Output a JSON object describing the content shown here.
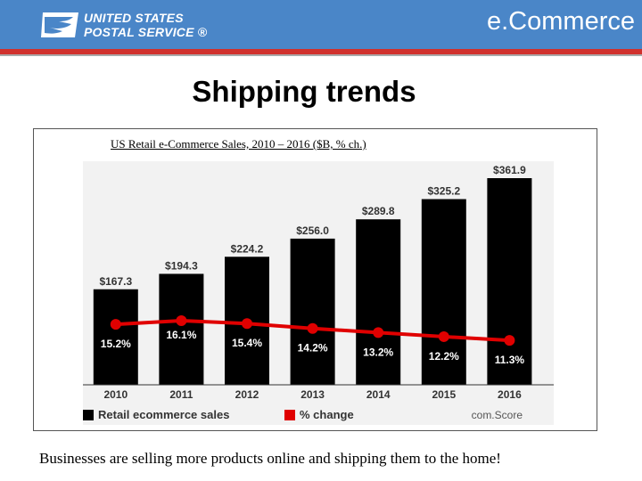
{
  "header": {
    "logo_line1": "UNITED STATES",
    "logo_line2": "POSTAL SERVICE ®",
    "section": "e.Commerce"
  },
  "slide": {
    "title": "Shipping trends",
    "caption": "Businesses are selling more products online and shipping them to the home!"
  },
  "colors": {
    "header_blue": "#4a86c8",
    "stripe_red": "#d0312d",
    "bar": "#000000",
    "line": "#e00000"
  },
  "chart_data": {
    "type": "bar",
    "title": "US Retail e-Commerce Sales, 2010 – 2016 ($B, % ch.)",
    "categories": [
      "2010",
      "2011",
      "2012",
      "2013",
      "2014",
      "2015",
      "2016"
    ],
    "series": [
      {
        "name": "Retail ecommerce sales",
        "type": "bar",
        "values": [
          167.3,
          194.3,
          224.2,
          256.0,
          289.8,
          325.2,
          361.9
        ],
        "labels": [
          "$167.3",
          "$194.3",
          "$224.2",
          "$256.0",
          "$289.8",
          "$325.2",
          "$361.9"
        ]
      },
      {
        "name": "% change",
        "type": "line",
        "values": [
          15.2,
          16.1,
          15.4,
          14.2,
          13.2,
          12.2,
          11.3
        ],
        "labels": [
          "15.2%",
          "16.1%",
          "15.4%",
          "14.2%",
          "13.2%",
          "12.2%",
          "11.3%"
        ]
      }
    ],
    "source": "com.Score",
    "legend_position": "bottom-left",
    "grid": false
  }
}
